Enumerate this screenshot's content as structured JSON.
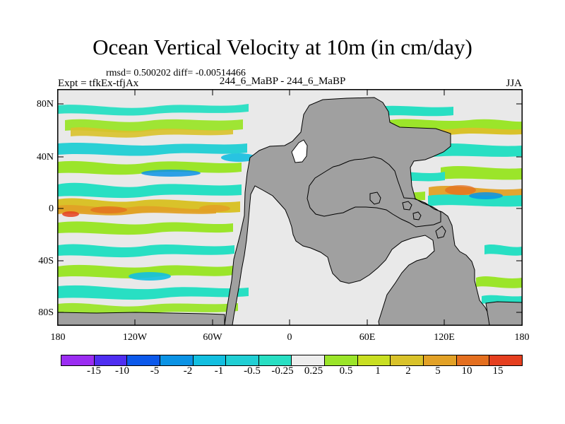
{
  "header": {
    "title": "Ocean Vertical Velocity at 10m (in cm/day)",
    "stats": "rmsd= 0.500202  diff= -0.00514466",
    "left_label": "Expt = tfkEx-tfjAx",
    "center_label": "244_6_MaBP - 244_6_MaBP",
    "right_label": "JJA"
  },
  "map": {
    "latitude_labels": [
      "80N",
      "40N",
      "0",
      "40S",
      "80S"
    ],
    "longitude_labels": [
      "180",
      "120W",
      "60W",
      "0",
      "60E",
      "120E",
      "180"
    ]
  },
  "colorbar": {
    "labels": [
      "-15",
      "-10",
      "-5",
      "-2",
      "-1",
      "-0.5",
      "-0.25",
      "0.25",
      "0.5",
      "1",
      "2",
      "5",
      "10",
      "15"
    ],
    "colors": [
      "#9b2df2",
      "#4f2ef1",
      "#0c59eb",
      "#0b93e5",
      "#13bfe0",
      "#20cfd4",
      "#28dfc3",
      "#ededed",
      "#9be52a",
      "#c9df22",
      "#d9c22a",
      "#e2a126",
      "#e46f1f",
      "#e53f1f"
    ]
  },
  "theme": {
    "background": "#ffffff",
    "land": "#a0a0a0",
    "ocean_neutral": "#e9e9e9",
    "outline": "#000000"
  }
}
